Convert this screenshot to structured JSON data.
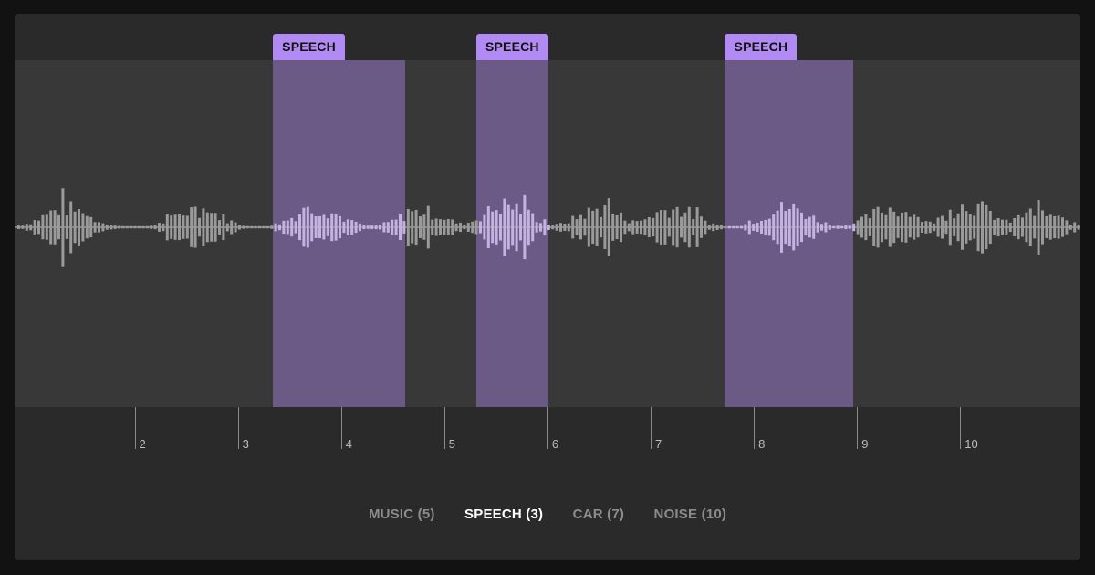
{
  "regions": [
    {
      "label": "SPEECH",
      "start": 3.34,
      "end": 4.62
    },
    {
      "label": "SPEECH",
      "start": 5.31,
      "end": 6.01
    },
    {
      "label": "SPEECH",
      "start": 7.72,
      "end": 8.96
    }
  ],
  "timeline": {
    "ticks": [
      "2",
      "3",
      "4",
      "5",
      "6",
      "7",
      "8",
      "9",
      "10"
    ]
  },
  "filters": [
    {
      "label": "MUSIC (5)",
      "active": false
    },
    {
      "label": "SPEECH (3)",
      "active": true
    },
    {
      "label": "CAR (7)",
      "active": false
    },
    {
      "label": "NOISE (10)",
      "active": false
    }
  ],
  "colors": {
    "background": "#121212",
    "panel": "#2a2a2a",
    "track": "#383838",
    "region_fill": "#6b5a86",
    "region_tag": "#b18bf3",
    "waveform": "#9a9a9a",
    "waveform_in_region": "#c4b2df"
  }
}
